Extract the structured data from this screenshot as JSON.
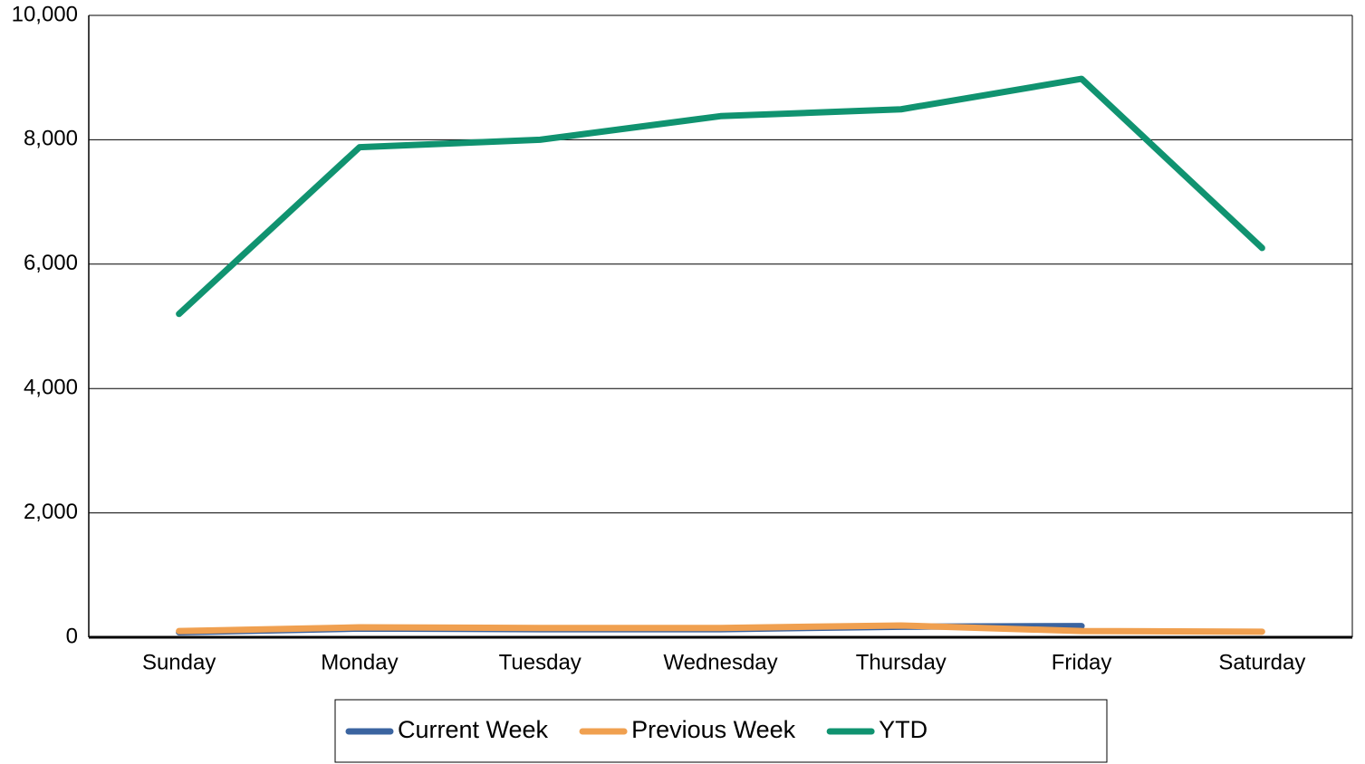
{
  "chart_data": {
    "type": "line",
    "categories": [
      "Sunday",
      "Monday",
      "Tuesday",
      "Wednesday",
      "Thursday",
      "Friday",
      "Saturday"
    ],
    "series": [
      {
        "name": "Current Week",
        "color": "#3b64a0",
        "values": [
          80,
          140,
          130,
          130,
          170,
          180,
          null
        ]
      },
      {
        "name": "Previous Week",
        "color": "#f0a050",
        "values": [
          100,
          160,
          150,
          150,
          190,
          100,
          90
        ]
      },
      {
        "name": "YTD",
        "color": "#109370",
        "values": [
          5200,
          7880,
          8000,
          8380,
          8490,
          8980,
          6260
        ]
      }
    ],
    "ylim": [
      0,
      10000
    ],
    "yticks": [
      0,
      {
        "value": 2000,
        "label": "2,000"
      },
      {
        "value": 4000,
        "label": "4,000"
      },
      {
        "value": 6000,
        "label": "6,000"
      },
      {
        "value": 8000,
        "label": "8,000"
      },
      {
        "value": 10000,
        "label": "10,000"
      }
    ],
    "grid": true,
    "legend": "bottom"
  }
}
